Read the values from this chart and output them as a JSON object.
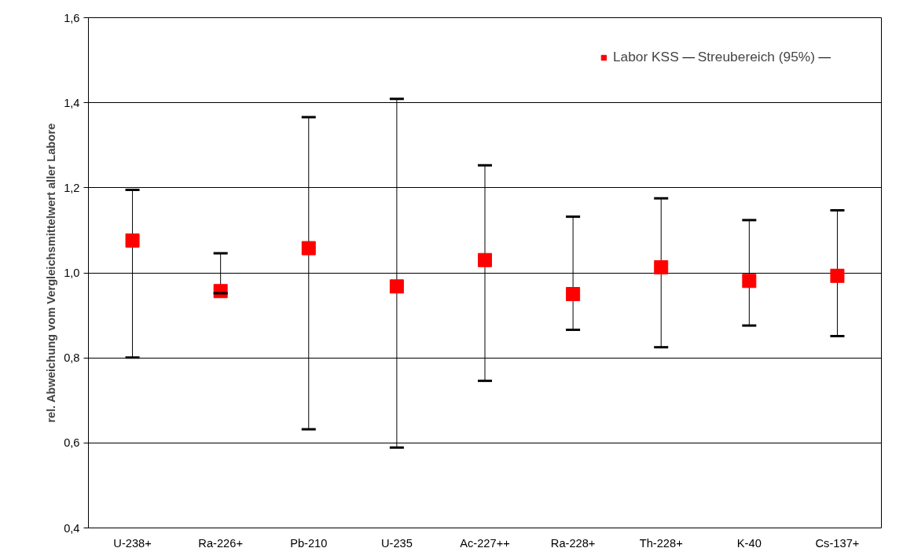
{
  "chart_data": {
    "type": "scatter",
    "ylabel": "rel. Abweichung vom Vergleichsmittelwert aller Labore",
    "categories": [
      "U-238+",
      "Ra-226+",
      "Pb-210",
      "U-235",
      "Ac-227++",
      "Ra-228+",
      "Th-228+",
      "K-40",
      "Cs-137+"
    ],
    "series": [
      {
        "name": "Labor KSS",
        "color": "#ff0000",
        "values": [
          1.076,
          0.957,
          1.058,
          0.968,
          1.03,
          0.95,
          1.013,
          0.981,
          0.993
        ],
        "errors": [
          [
            0.801,
            1.195
          ],
          [
            0.952,
            1.046
          ],
          [
            0.632,
            1.366
          ],
          [
            0.589,
            1.409
          ],
          [
            0.746,
            1.253
          ],
          [
            0.866,
            1.132
          ],
          [
            0.825,
            1.175
          ],
          [
            0.876,
            1.124
          ],
          [
            0.851,
            1.147
          ]
        ]
      }
    ],
    "annotations": [
      "Streubereich (95%)"
    ],
    "marker": "square",
    "ylim": [
      0.4,
      1.6
    ],
    "yticks": [
      {
        "value": 0.4,
        "label": "0,4"
      },
      {
        "value": 0.6,
        "label": "0,6"
      },
      {
        "value": 0.8,
        "label": "0,8"
      },
      {
        "value": 1.0,
        "label": "1,0"
      },
      {
        "value": 1.2,
        "label": "1,2"
      },
      {
        "value": 1.4,
        "label": "1,4"
      },
      {
        "value": 1.6,
        "label": "1,6"
      }
    ],
    "grid": "y",
    "legend": "top right"
  }
}
